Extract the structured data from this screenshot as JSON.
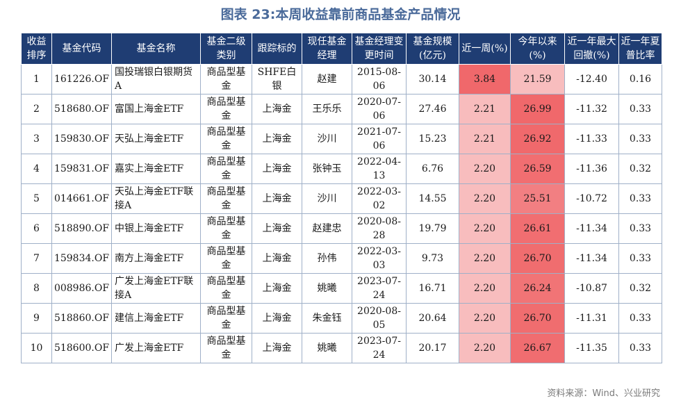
{
  "title": "图表 23:本周收益靠前商品基金产品情况",
  "headers": [
    "收益排序",
    "基金代码",
    "基金名称",
    "基金二级类别",
    "跟踪标的",
    "现任基金经理",
    "基金经理变更时间",
    "基金规模(亿元)",
    "近一周(%)",
    "今年以来(%)",
    "近一年最大回撤(%)",
    "近一年夏普比率"
  ],
  "rows": [
    {
      "rank": "1",
      "code": "161226.OF",
      "name": "国投瑞银白银期货A",
      "category": "商品型基金",
      "tracking": "SHFE白银",
      "manager": "赵建",
      "change_date": "2015-08-06",
      "size": "30.14",
      "week": "3.84",
      "ytd": "21.59",
      "drawdown": "-12.40",
      "sharpe": "0.16"
    },
    {
      "rank": "2",
      "code": "518680.OF",
      "name": "富国上海金ETF",
      "category": "商品型基金",
      "tracking": "上海金",
      "manager": "王乐乐",
      "change_date": "2020-07-06",
      "size": "27.46",
      "week": "2.21",
      "ytd": "26.99",
      "drawdown": "-11.32",
      "sharpe": "0.33"
    },
    {
      "rank": "3",
      "code": "159830.OF",
      "name": "天弘上海金ETF",
      "category": "商品型基金",
      "tracking": "上海金",
      "manager": "沙川",
      "change_date": "2021-07-06",
      "size": "15.23",
      "week": "2.21",
      "ytd": "26.92",
      "drawdown": "-11.33",
      "sharpe": "0.33"
    },
    {
      "rank": "4",
      "code": "159831.OF",
      "name": "嘉实上海金ETF",
      "category": "商品型基金",
      "tracking": "上海金",
      "manager": "张钟玉",
      "change_date": "2022-04-13",
      "size": "6.76",
      "week": "2.20",
      "ytd": "26.59",
      "drawdown": "-11.36",
      "sharpe": "0.32"
    },
    {
      "rank": "5",
      "code": "014661.OF",
      "name": "天弘上海金ETF联接A",
      "category": "商品型基金",
      "tracking": "上海金",
      "manager": "沙川",
      "change_date": "2022-03-02",
      "size": "14.55",
      "week": "2.20",
      "ytd": "25.51",
      "drawdown": "-10.72",
      "sharpe": "0.33"
    },
    {
      "rank": "6",
      "code": "518890.OF",
      "name": "中银上海金ETF",
      "category": "商品型基金",
      "tracking": "上海金",
      "manager": "赵建忠",
      "change_date": "2020-08-28",
      "size": "19.79",
      "week": "2.20",
      "ytd": "26.61",
      "drawdown": "-11.34",
      "sharpe": "0.33"
    },
    {
      "rank": "7",
      "code": "159834.OF",
      "name": "南方上海金ETF",
      "category": "商品型基金",
      "tracking": "上海金",
      "manager": "孙伟",
      "change_date": "2022-03-03",
      "size": "9.73",
      "week": "2.20",
      "ytd": "26.70",
      "drawdown": "-11.34",
      "sharpe": "0.33"
    },
    {
      "rank": "8",
      "code": "008986.OF",
      "name": "广发上海金ETF联接A",
      "category": "商品型基金",
      "tracking": "上海金",
      "manager": "姚曦",
      "change_date": "2023-07-24",
      "size": "16.71",
      "week": "2.20",
      "ytd": "26.24",
      "drawdown": "-10.87",
      "sharpe": "0.32"
    },
    {
      "rank": "9",
      "code": "518860.OF",
      "name": "建信上海金ETF",
      "category": "商品型基金",
      "tracking": "上海金",
      "manager": "朱金钰",
      "change_date": "2020-08-05",
      "size": "20.64",
      "week": "2.20",
      "ytd": "26.70",
      "drawdown": "-11.31",
      "sharpe": "0.33"
    },
    {
      "rank": "10",
      "code": "518600.OF",
      "name": "广发上海金ETF",
      "category": "商品型基金",
      "tracking": "上海金",
      "manager": "姚曦",
      "change_date": "2023-07-24",
      "size": "20.17",
      "week": "2.20",
      "ytd": "26.67",
      "drawdown": "-11.35",
      "sharpe": "0.33"
    }
  ],
  "source": "资料来源：Wind、兴业研究",
  "colors": {
    "header_bg": "#1f3d73",
    "heat_low": "#fbd9d9",
    "heat_high": "#f0686b"
  }
}
